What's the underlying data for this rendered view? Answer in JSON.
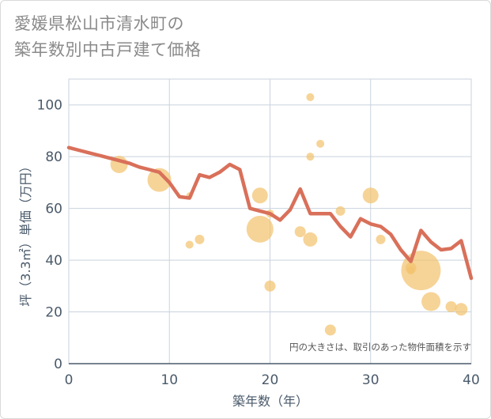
{
  "chart_data": {
    "type": "scatter",
    "title_line1": "愛媛県松山市清水町の",
    "title_line2": "築年数別中古戸建て価格",
    "xlabel": "築年数（年）",
    "ylabel": "坪（3.3㎡）単価（万円）",
    "xlim": [
      0,
      40
    ],
    "ylim": [
      0,
      110
    ],
    "xticks": [
      0,
      10,
      20,
      30,
      40
    ],
    "yticks": [
      0,
      20,
      40,
      60,
      80,
      100
    ],
    "note": "円の大きさは、取引のあった物件面積を示す",
    "colors": {
      "bubble": "#f2c46f",
      "line": "#d9705a",
      "grid": "#c9d3de",
      "axis": "#4a5a6a"
    },
    "bubbles": [
      {
        "x": 5,
        "y": 77,
        "size": 11
      },
      {
        "x": 9,
        "y": 71,
        "size": 15
      },
      {
        "x": 12,
        "y": 65,
        "size": 4
      },
      {
        "x": 12,
        "y": 46,
        "size": 5
      },
      {
        "x": 13,
        "y": 48,
        "size": 6
      },
      {
        "x": 19,
        "y": 65,
        "size": 10
      },
      {
        "x": 19,
        "y": 52,
        "size": 17
      },
      {
        "x": 20,
        "y": 58,
        "size": 5
      },
      {
        "x": 20,
        "y": 30,
        "size": 7
      },
      {
        "x": 23,
        "y": 51,
        "size": 7
      },
      {
        "x": 24,
        "y": 103,
        "size": 5
      },
      {
        "x": 24,
        "y": 80,
        "size": 5
      },
      {
        "x": 24,
        "y": 48,
        "size": 9
      },
      {
        "x": 25,
        "y": 85,
        "size": 5
      },
      {
        "x": 26,
        "y": 13,
        "size": 7
      },
      {
        "x": 27,
        "y": 59,
        "size": 6
      },
      {
        "x": 30,
        "y": 65,
        "size": 10
      },
      {
        "x": 31,
        "y": 48,
        "size": 6
      },
      {
        "x": 34,
        "y": 37,
        "size": 7
      },
      {
        "x": 34,
        "y": 36,
        "size": 5
      },
      {
        "x": 35,
        "y": 36,
        "size": 25
      },
      {
        "x": 36,
        "y": 24,
        "size": 12
      },
      {
        "x": 38,
        "y": 22,
        "size": 7
      },
      {
        "x": 39,
        "y": 21,
        "size": 8
      }
    ],
    "line": {
      "x": [
        0,
        1,
        2,
        3,
        4,
        5,
        6,
        7,
        8,
        9,
        10,
        11,
        12,
        13,
        14,
        15,
        16,
        17,
        18,
        19,
        20,
        21,
        22,
        23,
        24,
        25,
        26,
        27,
        28,
        29,
        30,
        31,
        32,
        33,
        34,
        35,
        36,
        37,
        38,
        39,
        40
      ],
      "y": [
        83.5,
        82.5,
        81.5,
        80.5,
        79.5,
        78.5,
        77.5,
        76,
        75,
        74,
        70,
        64.5,
        64,
        73,
        72,
        74,
        77,
        75,
        60,
        59,
        58,
        55.5,
        59.5,
        67.5,
        58,
        58,
        58,
        53,
        49,
        56,
        54,
        53,
        50,
        44,
        39.5,
        51.5,
        47,
        44,
        44.5,
        47.5,
        33
      ]
    }
  }
}
